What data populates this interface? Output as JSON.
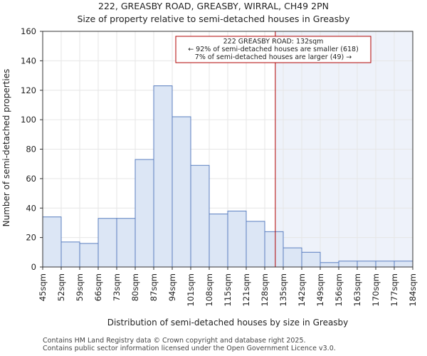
{
  "title_line1": "222, GREASBY ROAD, GREASBY, WIRRAL, CH49 2PN",
  "title_line2": "Size of property relative to semi-detached houses in Greasby",
  "footer_line1": "Contains HM Land Registry data © Crown copyright and database right 2025.",
  "footer_line2": "Contains public sector information licensed under the Open Government Licence v3.0.",
  "colors": {
    "bar_fill": "#dce6f5",
    "bar_stroke": "#5b7fc0",
    "highlight_bg": "#eef2fa",
    "marker_line": "#b00000",
    "annotation_border": "#b00000"
  },
  "chart_data": {
    "type": "bar",
    "title": "Size of property relative to semi-detached houses in Greasby",
    "xlabel": "Distribution of semi-detached houses by size in Greasby",
    "ylabel": "Number of semi-detached properties",
    "ylim": [
      0,
      160
    ],
    "yticks": [
      0,
      20,
      40,
      60,
      80,
      100,
      120,
      140,
      160
    ],
    "bin_edges": [
      45,
      52,
      59,
      66,
      73,
      80,
      87,
      94,
      101,
      108,
      115,
      121,
      128,
      135,
      142,
      149,
      156,
      163,
      170,
      177,
      184
    ],
    "tick_labels": [
      "45sqm",
      "52sqm",
      "59sqm",
      "66sqm",
      "73sqm",
      "80sqm",
      "87sqm",
      "94sqm",
      "101sqm",
      "108sqm",
      "115sqm",
      "121sqm",
      "128sqm",
      "135sqm",
      "142sqm",
      "149sqm",
      "156sqm",
      "163sqm",
      "170sqm",
      "177sqm",
      "184sqm"
    ],
    "values": [
      34,
      17,
      16,
      33,
      33,
      73,
      123,
      102,
      69,
      36,
      38,
      31,
      24,
      13,
      10,
      3,
      4,
      4,
      4,
      4
    ],
    "marker_value": 132,
    "annotation": {
      "line1": "222 GREASBY ROAD: 132sqm",
      "line2": "← 92% of semi-detached houses are smaller (618)",
      "line3": "7% of semi-detached houses are larger (49) →"
    }
  }
}
